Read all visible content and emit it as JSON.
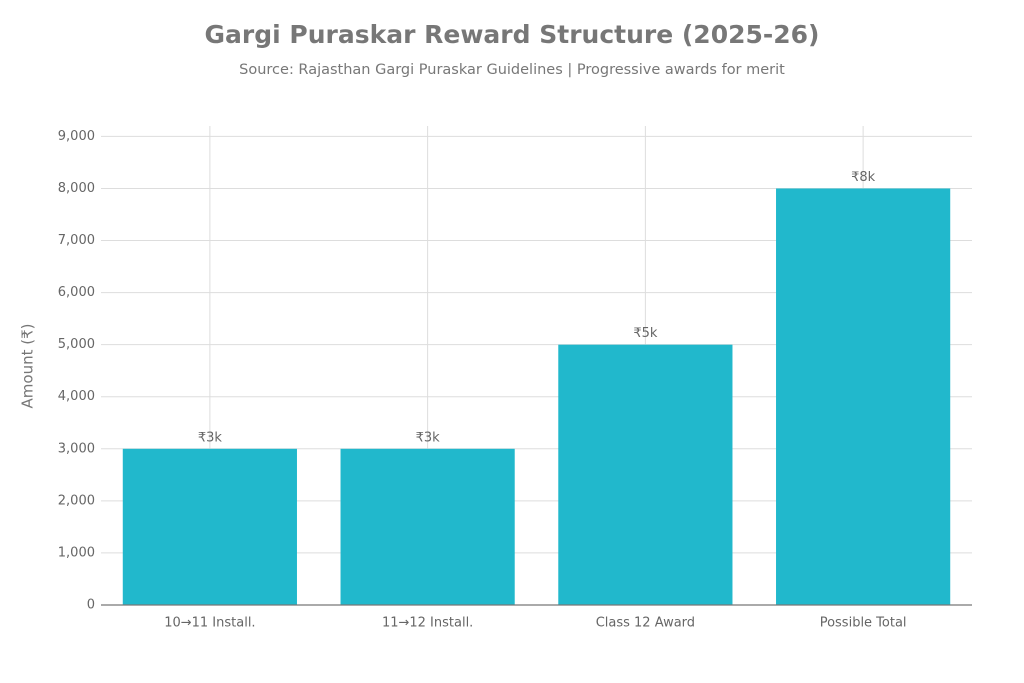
{
  "chart_data": {
    "type": "bar",
    "title": "Gargi Puraskar Reward Structure (2025-26)",
    "subtitle": "Source: Rajasthan Gargi Puraskar Guidelines | Progressive awards for merit",
    "y_label": "Amount (₹)",
    "categories": [
      "10→11 Install.",
      "11→12 Install.",
      "Class 12 Award",
      "Possible Total"
    ],
    "values": [
      3000,
      3000,
      5000,
      8000
    ],
    "value_labels": [
      "₹3k",
      "₹3k",
      "₹5k",
      "₹8k"
    ],
    "color": "#21b8cc",
    "ylim": [
      0,
      9200
    ],
    "yticks": [
      0,
      {
        "value": 1000,
        "label": "1,000"
      },
      {
        "value": 2000,
        "label": "2,000"
      },
      {
        "value": 3000,
        "label": "3,000"
      },
      {
        "value": 4000,
        "label": "4,000"
      },
      {
        "value": 5000,
        "label": "5,000"
      },
      {
        "value": 6000,
        "label": "6,000"
      },
      {
        "value": 7000,
        "label": "7,000"
      },
      {
        "value": 8000,
        "label": "8,000"
      },
      {
        "value": 9000,
        "label": "9,000"
      }
    ],
    "grid": true
  }
}
